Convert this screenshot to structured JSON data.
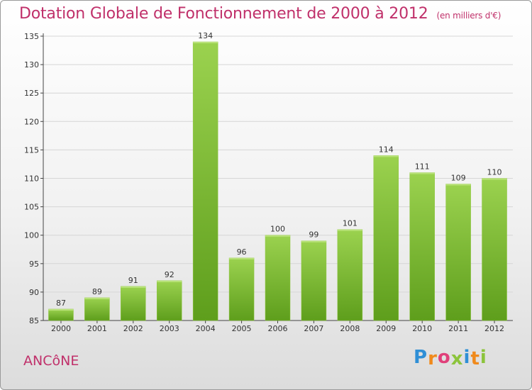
{
  "header": {
    "title": "Dotation Globale de Fonctionnement de 2000 à 2012",
    "unit": "(en milliers d'€)"
  },
  "footer": {
    "commune": "ANCôNE",
    "logo_letters": [
      {
        "ch": "P",
        "color": "#2f8fd6"
      },
      {
        "ch": "r",
        "color": "#f08a1c"
      },
      {
        "ch": "o",
        "color": "#e0407a"
      },
      {
        "ch": "x",
        "color": "#8cc43c"
      },
      {
        "ch": "i",
        "color": "#2f8fd6"
      },
      {
        "ch": "t",
        "color": "#f08a1c"
      },
      {
        "ch": "i",
        "color": "#8cc43c"
      }
    ]
  },
  "colors": {
    "title": "#c0306a",
    "bar_top": "#9bd24f",
    "bar_bottom": "#5e9e1c",
    "grid": "#d6d6d6"
  },
  "chart_data": {
    "type": "bar",
    "title": "Dotation Globale de Fonctionnement de 2000 à 2012",
    "subtitle": "(en milliers d'€)",
    "categories": [
      "2000",
      "2001",
      "2002",
      "2003",
      "2004",
      "2005",
      "2006",
      "2007",
      "2008",
      "2009",
      "2010",
      "2011",
      "2012"
    ],
    "values": [
      87,
      89,
      91,
      92,
      134,
      96,
      100,
      99,
      101,
      114,
      111,
      109,
      110
    ],
    "ylim": [
      85,
      135
    ],
    "yticks": [
      85,
      90,
      95,
      100,
      105,
      110,
      115,
      120,
      125,
      130,
      135
    ],
    "grid": true,
    "data_labels": true,
    "xlabel": "",
    "ylabel": ""
  }
}
